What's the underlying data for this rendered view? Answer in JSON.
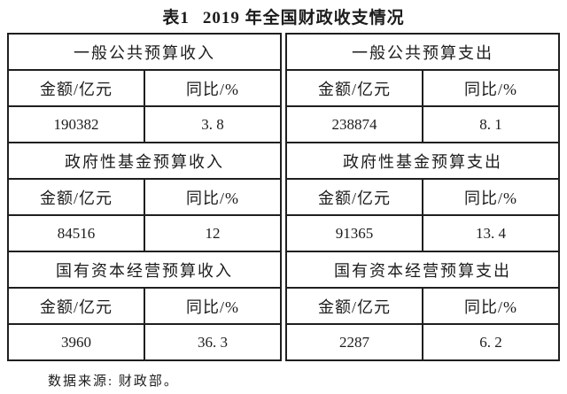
{
  "title": {
    "label": "表1",
    "text": "2019 年全国财政收支情况"
  },
  "table": {
    "halves": [
      {
        "name": "收入",
        "sections": [
          {
            "header": "一般公共预算收入",
            "amount_label": "金额/亿元",
            "yoy_label": "同比/%",
            "amount": "190382",
            "yoy": "3. 8"
          },
          {
            "header": "政府性基金预算收入",
            "amount_label": "金额/亿元",
            "yoy_label": "同比/%",
            "amount": "84516",
            "yoy": "12"
          },
          {
            "header": "国有资本经营预算收入",
            "amount_label": "金额/亿元",
            "yoy_label": "同比/%",
            "amount": "3960",
            "yoy": "36. 3"
          }
        ]
      },
      {
        "name": "支出",
        "sections": [
          {
            "header": "一般公共预算支出",
            "amount_label": "金额/亿元",
            "yoy_label": "同比/%",
            "amount": "238874",
            "yoy": "8. 1"
          },
          {
            "header": "政府性基金预算支出",
            "amount_label": "金额/亿元",
            "yoy_label": "同比/%",
            "amount": "91365",
            "yoy": "13. 4"
          },
          {
            "header": "国有资本经营预算支出",
            "amount_label": "金额/亿元",
            "yoy_label": "同比/%",
            "amount": "2287",
            "yoy": "6. 2"
          }
        ]
      }
    ]
  },
  "footer": {
    "text": "数据来源: 财政部。"
  }
}
